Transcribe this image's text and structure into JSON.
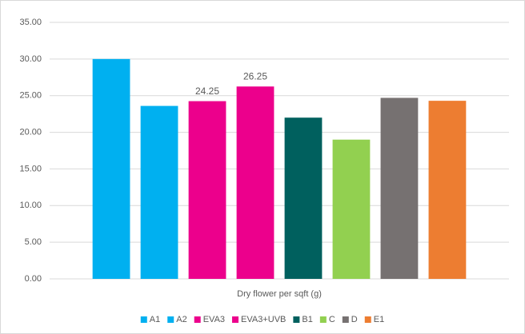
{
  "chart_data": {
    "type": "bar",
    "categories": [
      "Dry flower per sqft (g)"
    ],
    "series": [
      {
        "name": "A1",
        "color": "#00b0f0",
        "values": [
          30
        ]
      },
      {
        "name": "A2",
        "color": "#00b0f0",
        "values": [
          23.6
        ]
      },
      {
        "name": "EVA3",
        "color": "#ec008c",
        "values": [
          24.25
        ],
        "data_labels": true
      },
      {
        "name": "EVA3+UVB",
        "color": "#ec008c",
        "values": [
          26.25
        ],
        "data_labels": true
      },
      {
        "name": "B1",
        "color": "#00605e",
        "values": [
          22
        ]
      },
      {
        "name": "C",
        "color": "#92d050",
        "values": [
          19
        ]
      },
      {
        "name": "D",
        "color": "#767171",
        "values": [
          24.7
        ]
      },
      {
        "name": "E1",
        "color": "#ed7d31",
        "values": [
          24.3
        ]
      }
    ],
    "ylim": [
      0,
      35
    ],
    "yticks": [
      {
        "value": 0,
        "label": "0.00"
      },
      {
        "value": 5,
        "label": "5.00"
      },
      {
        "value": 10,
        "label": "10.00"
      },
      {
        "value": 15,
        "label": "15.00"
      },
      {
        "value": 20,
        "label": "20.00"
      },
      {
        "value": 25,
        "label": "25.00"
      },
      {
        "value": 30,
        "label": "30.00"
      },
      {
        "value": 35,
        "label": "35.00"
      }
    ],
    "grid": true,
    "legend": "bottom"
  }
}
